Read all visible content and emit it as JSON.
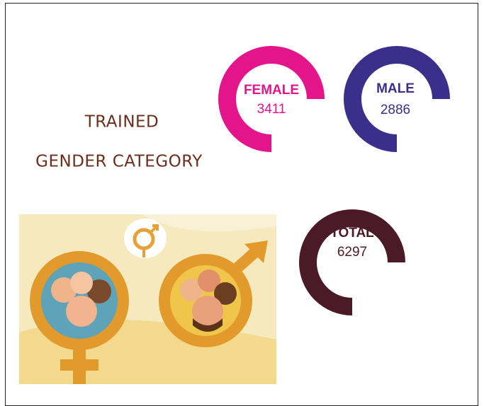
{
  "title": {
    "line1": "TRAINED",
    "line2": "GENDER CATEGORY"
  },
  "stats": [
    {
      "label": "FEMALE",
      "value": 3411
    },
    {
      "label": "MALE",
      "value": 2886
    },
    {
      "label": "TOTAL",
      "value": 6297
    }
  ]
}
